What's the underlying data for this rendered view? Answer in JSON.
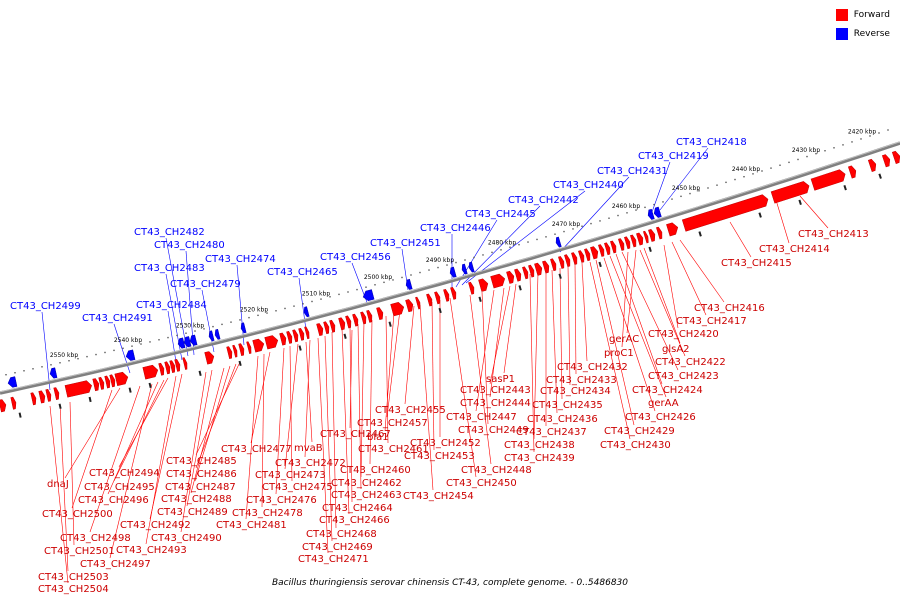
{
  "legend": [
    {
      "label": "Forward",
      "color": "#ff0000"
    },
    {
      "label": "Reverse",
      "color": "#0000ff"
    }
  ],
  "caption": "Bacillus thuringiensis serovar chinensis CT-43, complete genome. - 0..5486830",
  "colors": {
    "forward": "#ff0000",
    "forward_dark": "#c00000",
    "reverse": "#0000ff",
    "backbone": "#808080"
  },
  "ticks": [
    "2420 kbp",
    "2430 kbp",
    "2440 kbp",
    "2450 kbp",
    "2460 kbp",
    "2470 kbp",
    "2480 kbp",
    "2490 kbp",
    "2500 kbp",
    "2510 kbp",
    "2520 kbp",
    "2530 kbp",
    "2540 kbp",
    "2550 kbp"
  ],
  "reverse_labels": [
    "CT43_CH2418",
    "CT43_CH2419",
    "CT43_CH2431",
    "CT43_CH2440",
    "CT43_CH2442",
    "CT43_CH2445",
    "CT43_CH2446",
    "CT43_CH2451",
    "CT43_CH2456",
    "CT43_CH2465",
    "CT43_CH2474",
    "CT43_CH2479",
    "CT43_CH2480",
    "CT43_CH2482",
    "CT43_CH2483",
    "CT43_CH2484",
    "CT43_CH2491",
    "CT43_CH2499"
  ],
  "forward_labels": [
    "CT43_CH2413",
    "CT43_CH2414",
    "CT43_CH2415",
    "CT43_CH2416",
    "CT43_CH2417",
    "CT43_CH2420",
    "gerAC",
    "proC1",
    "glsA2",
    "CT43_CH2422",
    "CT43_CH2423",
    "CT43_CH2424",
    "gerAA",
    "CT43_CH2426",
    "CT43_CH2429",
    "CT43_CH2430",
    "CT43_CH2432",
    "CT43_CH2433",
    "CT43_CH2434",
    "CT43_CH2435",
    "CT43_CH2436",
    "CT43_CH2437",
    "CT43_CH2438",
    "CT43_CH2439",
    "sasP1",
    "CT43_CH2443",
    "CT43_CH2444",
    "CT43_CH2447",
    "CT43_CH2449",
    "CT43_CH2448",
    "CT43_CH2450",
    "CT43_CH2452",
    "CT43_CH2453",
    "CT43_CH2454",
    "CT43_CH2455",
    "CT43_CH2457",
    "bla1",
    "CT43_CH2461",
    "CT43_CH2460",
    "CT43_CH2462",
    "CT43_CH2463",
    "CT43_CH2464",
    "CT43_CH2466",
    "CT43_CH2467",
    "CT43_CH2468",
    "CT43_CH2469",
    "CT43_CH2471",
    "CT43_CH2472",
    "mvaB",
    "CT43_CH2473",
    "CT43_CH2475",
    "CT43_CH2476",
    "CT43_CH2477",
    "CT43_CH2478",
    "CT43_CH2481",
    "CT43_CH2485",
    "CT43_CH2486",
    "CT43_CH2487",
    "CT43_CH2488",
    "CT43_CH2489",
    "CT43_CH2490",
    "CT43_CH2492",
    "CT43_CH2493",
    "CT43_CH2494",
    "CT43_CH2495",
    "CT43_CH2496",
    "CT43_CH2497",
    "CT43_CH2498",
    "dnaJ",
    "CT43_CH2500",
    "CT43_CH2501",
    "CT43_CH2503",
    "CT43_CH2504"
  ]
}
